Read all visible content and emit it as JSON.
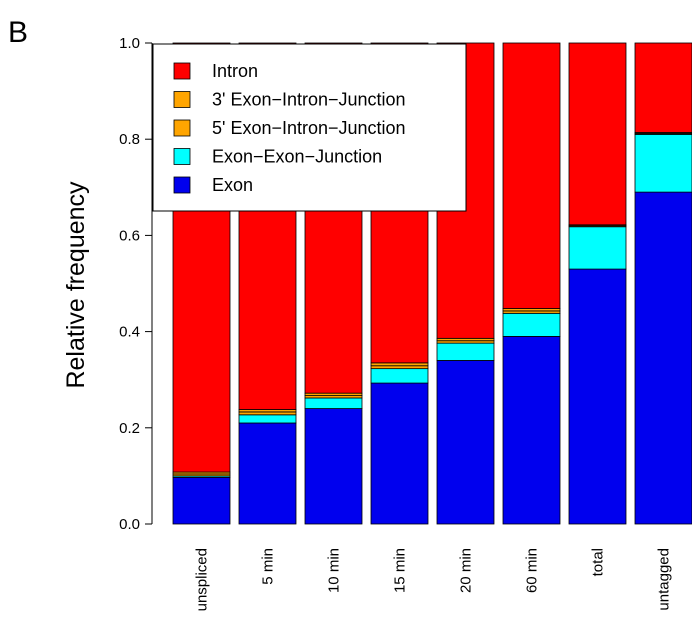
{
  "panel_label": "B",
  "chart_data": {
    "type": "bar",
    "stacked": true,
    "title": "",
    "xlabel": "",
    "ylabel": "Relative frequency",
    "ylim": [
      0,
      1
    ],
    "yticks": [
      "0.0",
      "0.2",
      "0.4",
      "0.6",
      "0.8",
      "1.0"
    ],
    "categories": [
      "unspliced",
      "5 min",
      "10 min",
      "15 min",
      "20 min",
      "60 min",
      "total",
      "untagged"
    ],
    "series": [
      {
        "name": "Exon",
        "color": "#0000ee",
        "values": [
          0.097,
          0.21,
          0.24,
          0.293,
          0.34,
          0.39,
          0.53,
          0.69
        ]
      },
      {
        "name": "Exon−Exon−Junction",
        "color": "#00ffff",
        "values": [
          0.003,
          0.017,
          0.022,
          0.03,
          0.036,
          0.048,
          0.088,
          0.12
        ]
      },
      {
        "name": "5' Exon−Intron−Junction",
        "color": "#ffa500",
        "values": [
          0.004,
          0.006,
          0.005,
          0.006,
          0.005,
          0.005,
          0.002,
          0.002
        ]
      },
      {
        "name": "3' Exon−Intron−Junction",
        "color": "#ffa500",
        "values": [
          0.004,
          0.005,
          0.005,
          0.006,
          0.005,
          0.005,
          0.002,
          0.002
        ]
      },
      {
        "name": "Intron",
        "color": "#ff0000",
        "values": [
          0.892,
          0.762,
          0.728,
          0.665,
          0.614,
          0.552,
          0.378,
          0.186
        ]
      }
    ],
    "legend": {
      "position": "top-left",
      "entries": [
        {
          "name": "Intron",
          "color": "#ff0000"
        },
        {
          "name": "3' Exon−Intron−Junction",
          "color": "#ffa500"
        },
        {
          "name": "5' Exon−Intron−Junction",
          "color": "#ffa500"
        },
        {
          "name": "Exon−Exon−Junction",
          "color": "#00ffff"
        },
        {
          "name": "Exon",
          "color": "#0000ee"
        }
      ]
    }
  }
}
